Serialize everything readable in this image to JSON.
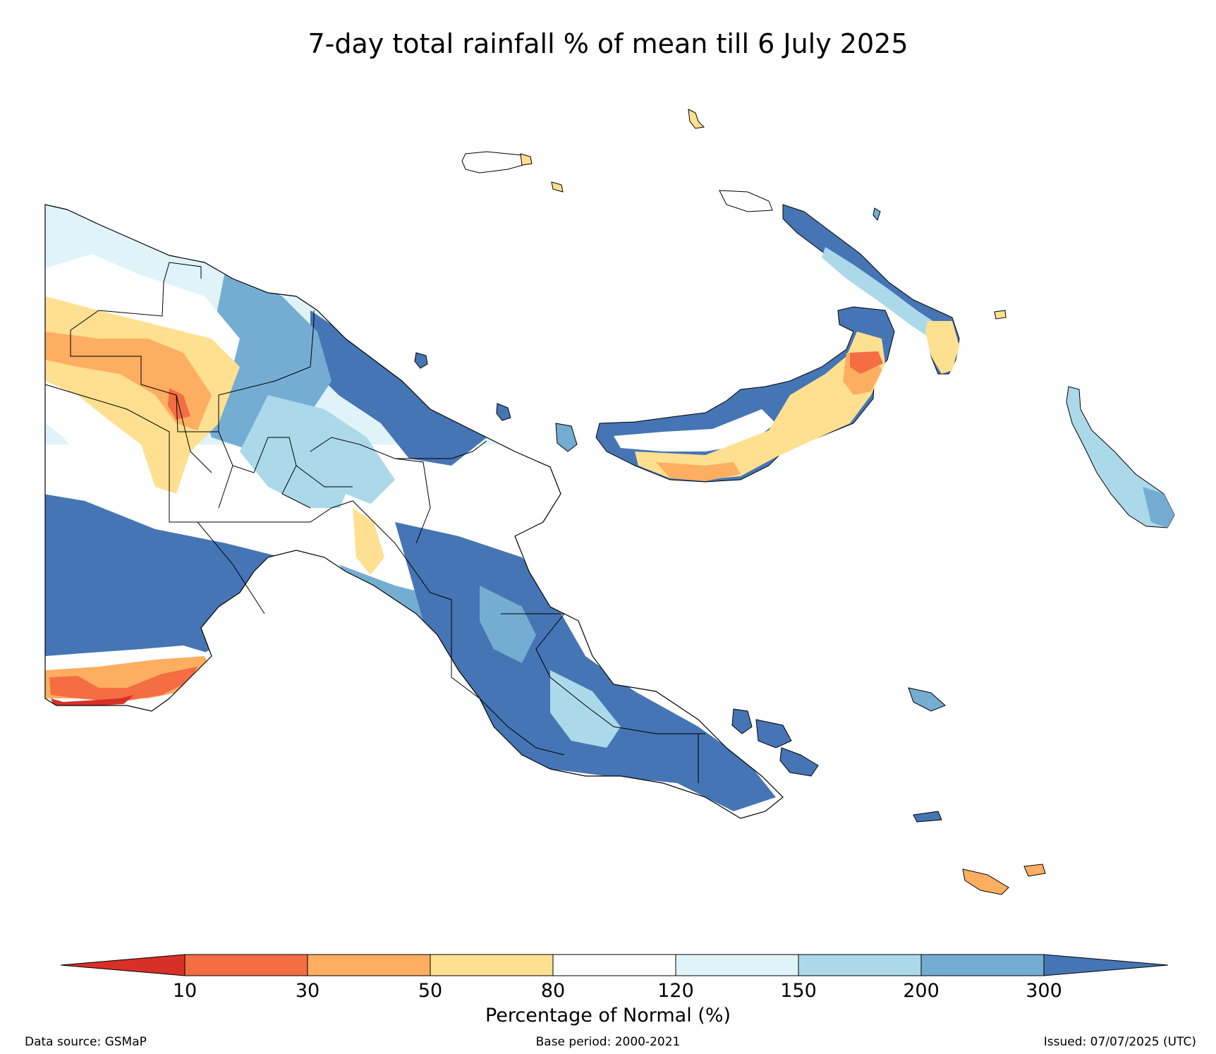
{
  "title": "7-day total rainfall % of mean till 6 July 2025",
  "colorbar": {
    "label": "Percentage of Normal (%)",
    "ticks": [
      "10",
      "30",
      "50",
      "80",
      "120",
      "150",
      "200",
      "300"
    ],
    "classes": [
      {
        "range": "<10",
        "color": "#d73027"
      },
      {
        "range": "10-30",
        "color": "#f46d43"
      },
      {
        "range": "30-50",
        "color": "#fdae61"
      },
      {
        "range": "50-80",
        "color": "#fee090"
      },
      {
        "range": "80-120",
        "color": "#ffffff"
      },
      {
        "range": "120-150",
        "color": "#e0f3f8"
      },
      {
        "range": "150-200",
        "color": "#abd9e9"
      },
      {
        "range": "200-300",
        "color": "#74add1"
      },
      {
        "range": ">300",
        "color": "#4575b4"
      }
    ]
  },
  "footer": {
    "source": "Data source: GSMaP",
    "base_period": "Base period: 2000-2021",
    "issued": "Issued: 07/07/2025 (UTC)"
  },
  "map": {
    "region": "Papua New Guinea",
    "regional_pattern": [
      {
        "area": "western highlands interior",
        "class": "50-80"
      },
      {
        "area": "far south-west coast",
        "class": "10-30"
      },
      {
        "area": "southern lowlands",
        "class": ">300"
      },
      {
        "area": "north coast",
        "class": ">300"
      },
      {
        "area": "Papuan peninsula",
        "class": ">300"
      },
      {
        "area": "New Britain south coast",
        "class": "30-50"
      },
      {
        "area": "New Britain east",
        "class": "10-30"
      },
      {
        "area": "New Ireland south",
        "class": "50-80"
      },
      {
        "area": "Bougainville",
        "class": "150-200"
      },
      {
        "area": "Milne Bay islands",
        "class": ">300"
      },
      {
        "area": "Rossel Island",
        "class": "30-50"
      }
    ]
  }
}
